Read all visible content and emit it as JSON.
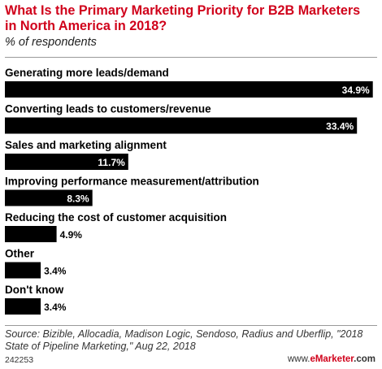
{
  "header": {
    "title": "What Is the Primary Marketing Priority for B2B Marketers in North America in 2018?",
    "subtitle": "% of respondents"
  },
  "chart_data": {
    "type": "bar",
    "orientation": "horizontal",
    "title": "What Is the Primary Marketing Priority for B2B Marketers in North America in 2018?",
    "subtitle": "% of respondents",
    "categories": [
      "Generating more leads/demand",
      "Converting leads to customers/revenue",
      "Sales and marketing alignment",
      "Improving performance measurement/attribution",
      "Reducing the cost of customer acquisition",
      "Other",
      "Don't know"
    ],
    "values": [
      34.9,
      33.4,
      11.7,
      8.3,
      4.9,
      3.4,
      3.4
    ],
    "value_labels": [
      "34.9%",
      "33.4%",
      "11.7%",
      "8.3%",
      "4.9%",
      "3.4%",
      "3.4%"
    ],
    "xlim": [
      0,
      35
    ],
    "grid": false,
    "legend": "none",
    "bar_color": "#000000"
  },
  "footer": {
    "source": "Source: Bizible, Allocadia, Madison Logic, Sendoso, Radius and Uberflip, \"2018 State of Pipeline Marketing,\" Aug 22, 2018",
    "chart_id": "242253",
    "brand_prefix": "www.",
    "brand_accent": "eMarketer",
    "brand_suffix": ".com"
  },
  "colors": {
    "title": "#d0021b",
    "bar": "#000000",
    "rule": "#9a9a9a"
  }
}
